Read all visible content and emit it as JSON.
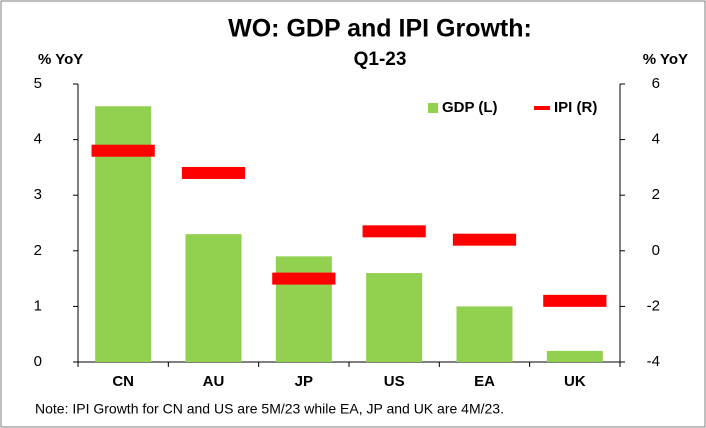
{
  "chart_data": {
    "type": "bar",
    "title": [
      "WO: GDP and IPI Growth:",
      "Q1-23"
    ],
    "y_label": "% YoY",
    "y2_label": "% YoY",
    "annotation": "Note: IPI Growth for CN and US are 5M/23 while EA, JP and UK are 4M/23.",
    "categories": [
      "CN",
      "AU",
      "JP",
      "US",
      "EA",
      "UK"
    ],
    "series": [
      {
        "name": "GDP (L)",
        "color": "#92d050",
        "mark": "bar",
        "values": [
          4.6,
          2.3,
          1.9,
          1.6,
          1.0,
          0.2
        ]
      },
      {
        "name": "IPI (R)",
        "color": "#ff0000",
        "mark": "dash",
        "axis": "y2",
        "values": [
          3.6,
          2.8,
          -1.0,
          0.7,
          0.4,
          -1.8
        ]
      }
    ],
    "ylim": [
      0,
      5
    ],
    "yticks": [
      0,
      1,
      2,
      3,
      4,
      5
    ],
    "y2lim": [
      -4,
      6
    ],
    "y2ticks": [
      -4,
      -2,
      0,
      2,
      4,
      6
    ],
    "grid": false,
    "legend": "top-right"
  }
}
